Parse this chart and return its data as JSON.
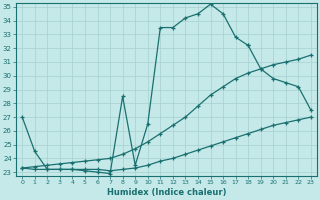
{
  "xlabel": "Humidex (Indice chaleur)",
  "bg_color": "#c5e8e8",
  "line_color": "#1a7070",
  "grid_color": "#a8d0d0",
  "xlim": [
    -0.5,
    23.5
  ],
  "ylim": [
    22.7,
    35.3
  ],
  "xticks": [
    0,
    1,
    2,
    3,
    4,
    5,
    6,
    7,
    8,
    9,
    10,
    11,
    12,
    13,
    14,
    15,
    16,
    17,
    18,
    19,
    20,
    21,
    22,
    23
  ],
  "yticks": [
    23,
    24,
    25,
    26,
    27,
    28,
    29,
    30,
    31,
    32,
    33,
    34,
    35
  ],
  "line1_x": [
    0,
    1,
    2,
    3,
    4,
    5,
    6,
    7,
    8,
    9,
    10,
    11,
    12,
    13,
    14,
    15,
    16,
    17,
    18
  ],
  "line1_y": [
    27.0,
    24.5,
    23.2,
    23.2,
    23.2,
    23.1,
    23.0,
    22.9,
    28.5,
    23.5,
    26.5,
    33.5,
    33.5,
    34.2,
    34.5,
    35.2,
    34.5,
    32.8,
    32.2
  ],
  "line2_x": [
    18,
    19,
    20,
    21,
    22,
    23
  ],
  "line2_y": [
    32.2,
    30.5,
    29.8,
    29.5,
    29.2,
    27.5
  ],
  "line3_x": [
    0,
    1,
    2,
    3,
    4,
    5,
    6,
    7,
    8,
    9,
    10,
    11,
    12,
    13,
    14,
    15,
    16,
    17,
    18,
    19,
    20,
    21,
    22,
    23
  ],
  "line3_y": [
    23.3,
    23.2,
    23.2,
    23.2,
    23.2,
    23.2,
    23.2,
    23.1,
    23.2,
    23.3,
    23.5,
    23.8,
    24.0,
    24.3,
    24.6,
    24.9,
    25.2,
    25.5,
    25.8,
    26.1,
    26.4,
    26.6,
    26.8,
    27.0
  ],
  "line4_x": [
    0,
    1,
    2,
    3,
    4,
    5,
    6,
    7,
    8,
    9,
    10,
    11,
    12,
    13,
    14,
    15,
    16,
    17,
    18,
    19,
    20,
    21,
    22,
    23
  ],
  "line4_y": [
    23.3,
    23.4,
    23.5,
    23.6,
    23.7,
    23.8,
    23.9,
    24.0,
    24.3,
    24.7,
    25.2,
    25.8,
    26.4,
    27.0,
    27.8,
    28.6,
    29.2,
    29.8,
    30.2,
    30.5,
    30.8,
    31.0,
    31.2,
    31.5
  ]
}
